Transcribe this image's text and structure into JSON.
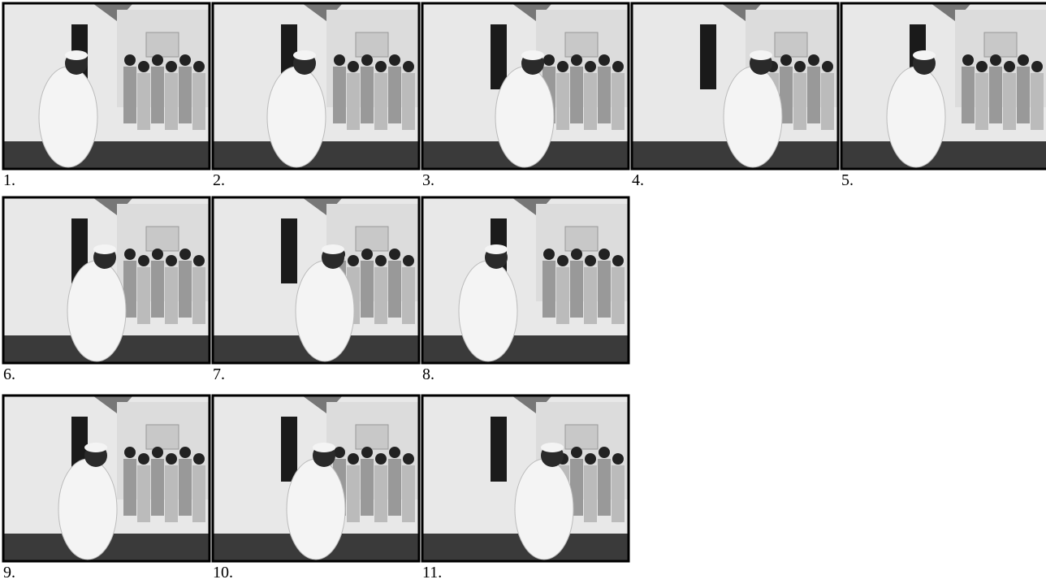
{
  "figure": {
    "labels": [
      "1.",
      "2.",
      "3.",
      "4.",
      "5.",
      "6.",
      "7.",
      "8.",
      "9.",
      "10.",
      "11."
    ]
  }
}
